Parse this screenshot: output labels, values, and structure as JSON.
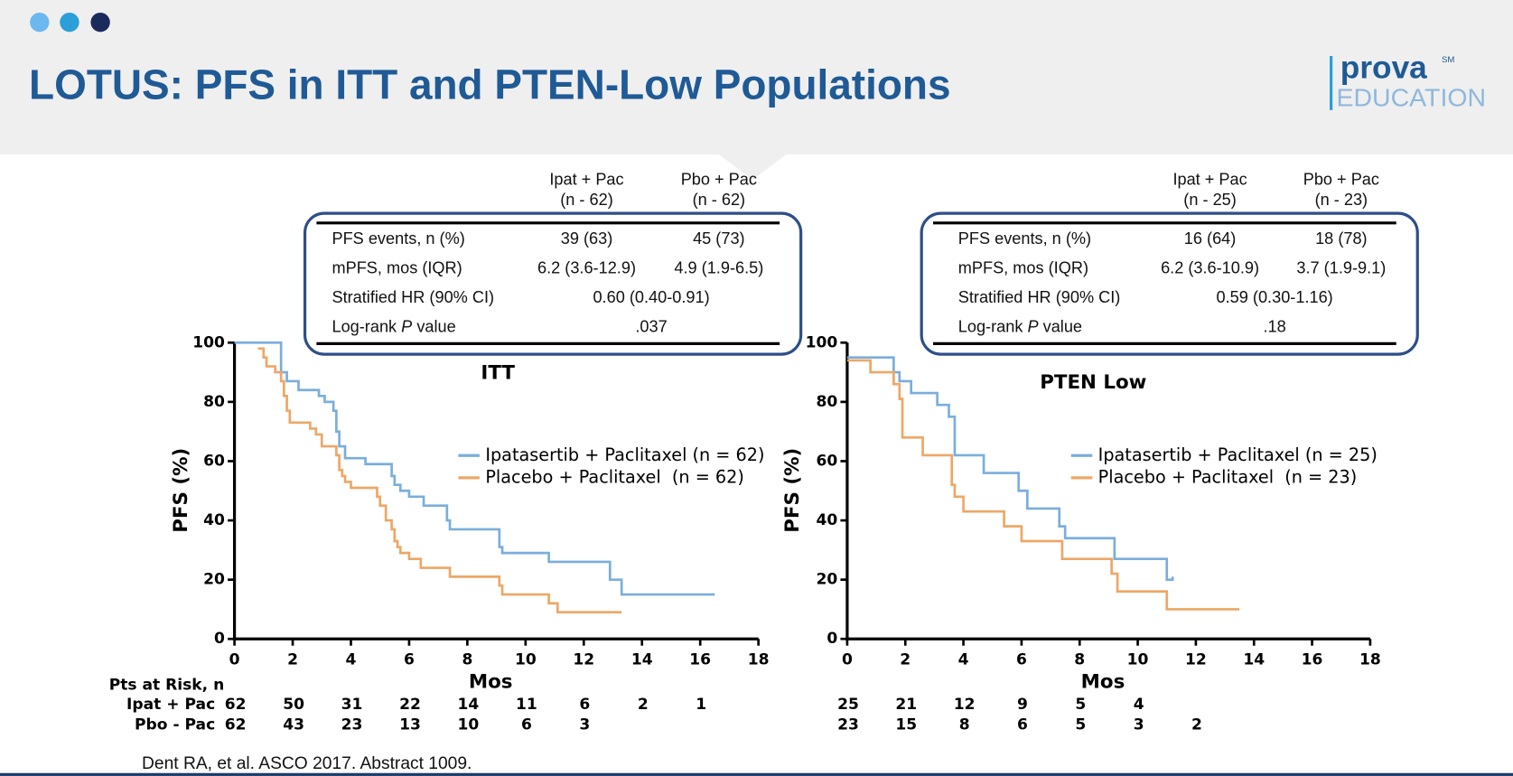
{
  "title": "LOTUS: PFS in ITT and PTEN-Low Populations",
  "logo": {
    "name": "prova",
    "mark": "SM",
    "subtitle": "EDUCATION"
  },
  "tables": [
    {
      "columns": [
        [
          "Ipat + Pac",
          "(n - 62)"
        ],
        [
          "Pbo + Pac",
          "(n - 62)"
        ]
      ],
      "rows": [
        [
          "PFS events, n (%)",
          "39 (63)",
          "45 (73)"
        ],
        [
          "mPFS, mos (IQR)",
          "6.2 (3.6-12.9)",
          "4.9 (1.9-6.5)"
        ],
        [
          "Stratified HR (90% CI)",
          "0.60 (0.40-0.91)"
        ],
        [
          [
            "Log-rank ",
            "P",
            " value"
          ],
          ".037"
        ]
      ]
    },
    {
      "columns": [
        [
          "Ipat + Pac",
          "(n - 25)"
        ],
        [
          "Pbo + Pac",
          "(n - 23)"
        ]
      ],
      "rows": [
        [
          "PFS events, n (%)",
          "16 (64)",
          "18 (78)"
        ],
        [
          "mPFS, mos (IQR)",
          "6.2 (3.6-10.9)",
          "3.7 (1.9-9.1)"
        ],
        [
          "Stratified HR (90% CI)",
          "0.59 (0.30-1.16)"
        ],
        [
          [
            "Log-rank ",
            "P",
            " value"
          ],
          ".18"
        ]
      ]
    }
  ],
  "risk_label": "Pts at Risk, n",
  "chart_data": [
    {
      "type": "line",
      "drawstyle": "steps-post",
      "title": "ITT",
      "xlabel": "Mos",
      "ylabel": "PFS (%)",
      "xlim": [
        0,
        18
      ],
      "xticks": [
        0,
        2,
        4,
        6,
        8,
        10,
        12,
        14,
        16,
        18
      ],
      "ylim": [
        0,
        100
      ],
      "yticks": [
        0,
        20,
        40,
        60,
        80,
        100
      ],
      "legend": "right",
      "series": [
        {
          "name": "Ipatasertib + Paclitaxel (n = 62)",
          "color": "#7aaedc",
          "x": [
            0,
            1.6,
            1.8,
            2.2,
            2.9,
            3.1,
            3.4,
            3.5,
            3.6,
            3.8,
            4.5,
            5.4,
            5.5,
            5.7,
            6.0,
            6.5,
            7.3,
            7.4,
            9.1,
            9.2,
            10.8,
            12.9,
            13.3,
            16.5
          ],
          "values": [
            100,
            90,
            87,
            84,
            82,
            80,
            77,
            70,
            65,
            61,
            59,
            55,
            52,
            50,
            48,
            45,
            40,
            37,
            31,
            29,
            26,
            20,
            15,
            15
          ]
        },
        {
          "name": "Placebo + Paclitaxel  (n = 62)",
          "color": "#eda766",
          "x": [
            0.8,
            1.0,
            1.1,
            1.4,
            1.6,
            1.7,
            1.8,
            1.9,
            2.6,
            2.8,
            3.0,
            3.5,
            3.6,
            3.7,
            3.8,
            4.0,
            4.9,
            5.0,
            5.2,
            5.4,
            5.5,
            5.6,
            5.7,
            6.0,
            6.4,
            7.4,
            9.1,
            9.2,
            10.8,
            11.1,
            13.3
          ],
          "values": [
            98,
            95,
            92,
            90,
            87,
            82,
            77,
            73,
            71,
            69,
            65,
            62,
            57,
            55,
            53,
            51,
            48,
            45,
            40,
            37,
            33,
            31,
            29,
            27,
            24,
            21,
            18,
            15,
            12,
            9,
            9
          ]
        }
      ],
      "risk_table": [
        {
          "name": "Ipat + Pac",
          "values": [
            62,
            50,
            31,
            22,
            14,
            11,
            6,
            2,
            1
          ]
        },
        {
          "name": "Pbo - Pac",
          "values": [
            62,
            43,
            23,
            13,
            10,
            6,
            3
          ]
        }
      ]
    },
    {
      "type": "line",
      "drawstyle": "steps-post",
      "title": "PTEN Low",
      "xlabel": "Mos",
      "ylabel": "PFS (%)",
      "xlim": [
        0,
        18
      ],
      "xticks": [
        0,
        2,
        4,
        6,
        8,
        10,
        12,
        14,
        16,
        18
      ],
      "ylim": [
        0,
        100
      ],
      "yticks": [
        0,
        20,
        40,
        60,
        80,
        100
      ],
      "legend": "right",
      "series": [
        {
          "name": "Ipatasertib + Paclitaxel (n = 25)",
          "color": "#7aaedc",
          "x": [
            0,
            1.6,
            1.8,
            2.2,
            3.1,
            3.5,
            3.7,
            4.7,
            5.9,
            6.2,
            7.3,
            7.5,
            9.2,
            11.0,
            11.2
          ],
          "values": [
            95,
            90,
            87,
            83,
            79,
            75,
            62,
            56,
            50,
            44,
            38,
            34,
            27,
            20,
            21
          ]
        },
        {
          "name": "Placebo + Paclitaxel  (n = 23)",
          "color": "#eda766",
          "x": [
            0,
            0.8,
            1.6,
            1.8,
            1.9,
            2.6,
            3.6,
            3.7,
            4.0,
            5.4,
            6.0,
            7.4,
            9.1,
            9.3,
            11.0,
            13.5
          ],
          "values": [
            94,
            90,
            86,
            81,
            68,
            62,
            52,
            48,
            43,
            38,
            33,
            27,
            22,
            16,
            10,
            10
          ]
        }
      ],
      "risk_table": [
        {
          "values": [
            25,
            21,
            12,
            9,
            5,
            4
          ]
        },
        {
          "values": [
            23,
            15,
            8,
            6,
            5,
            3,
            2
          ]
        }
      ]
    }
  ],
  "footnote": "Dent RA, et al. ASCO 2017. Abstract 1009."
}
